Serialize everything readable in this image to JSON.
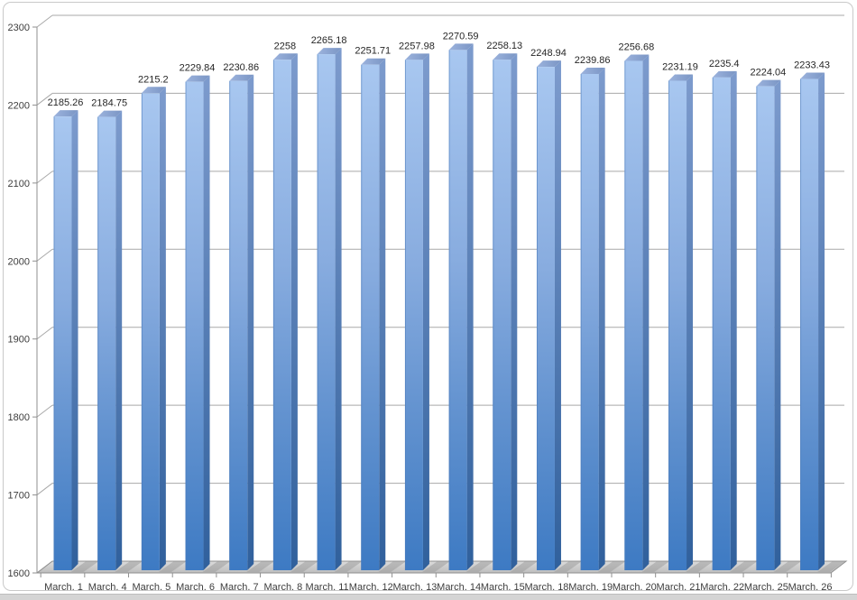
{
  "chart_data": {
    "type": "bar",
    "style": "3d-column",
    "title": "",
    "xlabel": "",
    "ylabel": "",
    "categories": [
      "March. 1",
      "March. 4",
      "March. 5",
      "March. 6",
      "March. 7",
      "March. 8",
      "March. 11",
      "March. 12",
      "March. 13",
      "March. 14",
      "March. 15",
      "March. 18",
      "March. 19",
      "March. 20",
      "March. 21",
      "March. 22",
      "March. 25",
      "March. 26"
    ],
    "values": [
      2185.26,
      2184.75,
      2215.2,
      2229.84,
      2230.86,
      2258,
      2265.18,
      2251.71,
      2257.98,
      2270.59,
      2258.13,
      2248.94,
      2239.86,
      2256.68,
      2231.19,
      2235.4,
      2224.04,
      2233.43
    ],
    "ylim": [
      1600,
      2300
    ],
    "yticks": [
      1600,
      1700,
      1800,
      1900,
      2000,
      2100,
      2200,
      2300
    ],
    "grid": true,
    "legend": null,
    "data_labels_shown": true,
    "colors": {
      "bar_front_top": "#a8c7f0",
      "bar_front_upper": "#88acdf",
      "bar_front_lower": "#5f90ce",
      "bar_front_bottom": "#3d7ac3",
      "bar_side_top": "#7d9bcd",
      "bar_side_bottom": "#30609c",
      "bar_top_left": "#9cb3dd",
      "bar_top_right": "#7a95c4",
      "bar_left_edge": "#4a79b8",
      "gridline": "#a9a9a9",
      "axis": "#8f8f8f",
      "floor_back": "#dcdcdc",
      "floor_front": "#bdbdbd",
      "floor_shadow": "#9a9a9a",
      "frame_border": "#c9c9c9",
      "bottom_strip": "#d4d4d4",
      "label_text": "#262626",
      "tick_text": "#3d3d3d"
    }
  }
}
